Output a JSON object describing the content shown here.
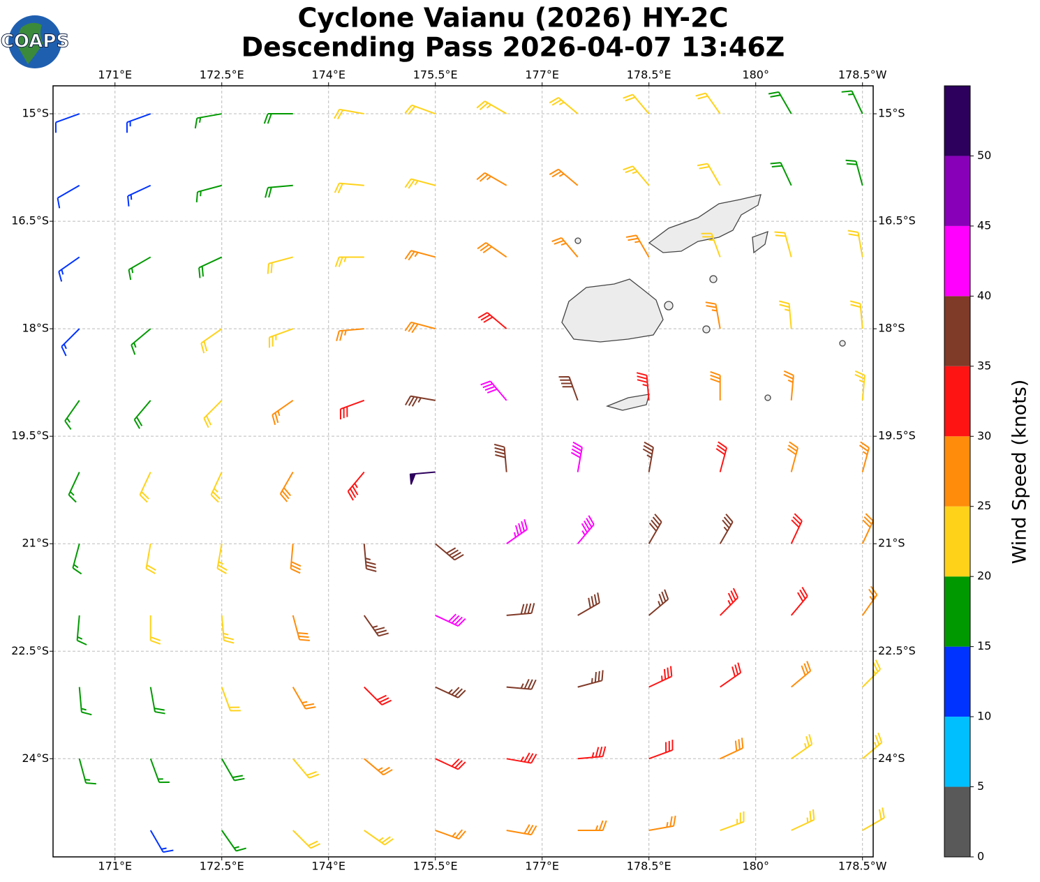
{
  "chart_data": {
    "type": "barbs",
    "title": "Cyclone Vaianu (2026) HY-2C",
    "subtitle": "Descending Pass 2026-04-07 13:46Z",
    "logo_text": "COAPS",
    "xlim": [
      170.13,
      181.65
    ],
    "ylim": [
      -25.37,
      -14.61
    ],
    "xticks": [
      {
        "value": 171,
        "label": "171°E"
      },
      {
        "value": 172.5,
        "label": "172.5°E"
      },
      {
        "value": 174,
        "label": "174°E"
      },
      {
        "value": 175.5,
        "label": "175.5°E"
      },
      {
        "value": 177,
        "label": "177°E"
      },
      {
        "value": 178.5,
        "label": "178.5°E"
      },
      {
        "value": 180,
        "label": "180°"
      },
      {
        "value": 181.5,
        "label": "178.5°W"
      }
    ],
    "yticks": [
      {
        "value": -15,
        "label": "15°S"
      },
      {
        "value": -16.5,
        "label": "16.5°S"
      },
      {
        "value": -18,
        "label": "18°S"
      },
      {
        "value": -19.5,
        "label": "19.5°S"
      },
      {
        "value": -21,
        "label": "21°S"
      },
      {
        "value": -22.5,
        "label": "22.5°S"
      },
      {
        "value": -24,
        "label": "24°S"
      }
    ],
    "grid": true,
    "lon": [
      170.5,
      171.5,
      172.5,
      173.5,
      174.5,
      175.5,
      176.5,
      177.5,
      178.5,
      179.5,
      180.5,
      181.5
    ],
    "lat": [
      -15,
      -16,
      -17,
      -18,
      -19,
      -20,
      -21,
      -22,
      -23,
      -24,
      -25
    ],
    "speed": [
      [
        12,
        13,
        15,
        18,
        20,
        22,
        23,
        23,
        22,
        21,
        18,
        17
      ],
      [
        12,
        14,
        16,
        19,
        21,
        23,
        26,
        25,
        23,
        22,
        19,
        18
      ],
      [
        14,
        16,
        18,
        21,
        23,
        26,
        28,
        27,
        25,
        23,
        21,
        20
      ],
      [
        14,
        17,
        20,
        24,
        27,
        29,
        32,
        null,
        null,
        25,
        23,
        22
      ],
      [
        16,
        18,
        22,
        26,
        31,
        36,
        41,
        38,
        33,
        28,
        26,
        24
      ],
      [
        17,
        21,
        24,
        28,
        34,
        52,
        38,
        42,
        37,
        32,
        28,
        26
      ],
      [
        17,
        21,
        24,
        29,
        36,
        38,
        44,
        43,
        38,
        36,
        32,
        28
      ],
      [
        16,
        20,
        24,
        28,
        36,
        41,
        39,
        38,
        37,
        34,
        31,
        27
      ],
      [
        16,
        19,
        22,
        25,
        32,
        37,
        37,
        36,
        34,
        31,
        28,
        24
      ],
      [
        15,
        17,
        19,
        21,
        27,
        32,
        34,
        33,
        31,
        28,
        24,
        23
      ],
      [
        null,
        14,
        17,
        21,
        24,
        27,
        28,
        27,
        26,
        24,
        23,
        22
      ]
    ],
    "direction": [
      [
        250,
        250,
        260,
        270,
        280,
        290,
        300,
        310,
        320,
        325,
        330,
        335
      ],
      [
        240,
        245,
        255,
        265,
        275,
        285,
        300,
        310,
        320,
        330,
        335,
        345
      ],
      [
        235,
        240,
        245,
        255,
        270,
        285,
        305,
        320,
        330,
        340,
        345,
        350
      ],
      [
        225,
        230,
        235,
        250,
        265,
        285,
        310,
        null,
        null,
        350,
        355,
        355
      ],
      [
        215,
        220,
        225,
        235,
        250,
        280,
        320,
        340,
        355,
        0,
        5,
        5
      ],
      [
        205,
        205,
        205,
        210,
        220,
        265,
        355,
        10,
        10,
        15,
        15,
        15
      ],
      [
        195,
        190,
        190,
        185,
        175,
        130,
        55,
        40,
        30,
        30,
        25,
        25
      ],
      [
        185,
        180,
        175,
        165,
        145,
        115,
        85,
        60,
        50,
        45,
        40,
        35
      ],
      [
        175,
        170,
        160,
        150,
        135,
        115,
        95,
        75,
        65,
        55,
        50,
        45
      ],
      [
        165,
        160,
        150,
        140,
        130,
        115,
        100,
        85,
        70,
        65,
        55,
        50
      ],
      [
        null,
        150,
        145,
        135,
        125,
        110,
        100,
        90,
        80,
        70,
        65,
        60
      ]
    ],
    "colorbar": {
      "label": "Wind Speed (knots)",
      "lim": [
        0,
        55
      ],
      "ticks": [
        0,
        5,
        10,
        15,
        20,
        25,
        30,
        35,
        40,
        45,
        50
      ],
      "colors": [
        "#595959",
        "#00bfff",
        "#0033ff",
        "#009900",
        "#ffd21a",
        "#ff8c0a",
        "#ff1414",
        "#803a28",
        "#ff00ff",
        "#8800b8",
        "#2c005c"
      ]
    }
  }
}
